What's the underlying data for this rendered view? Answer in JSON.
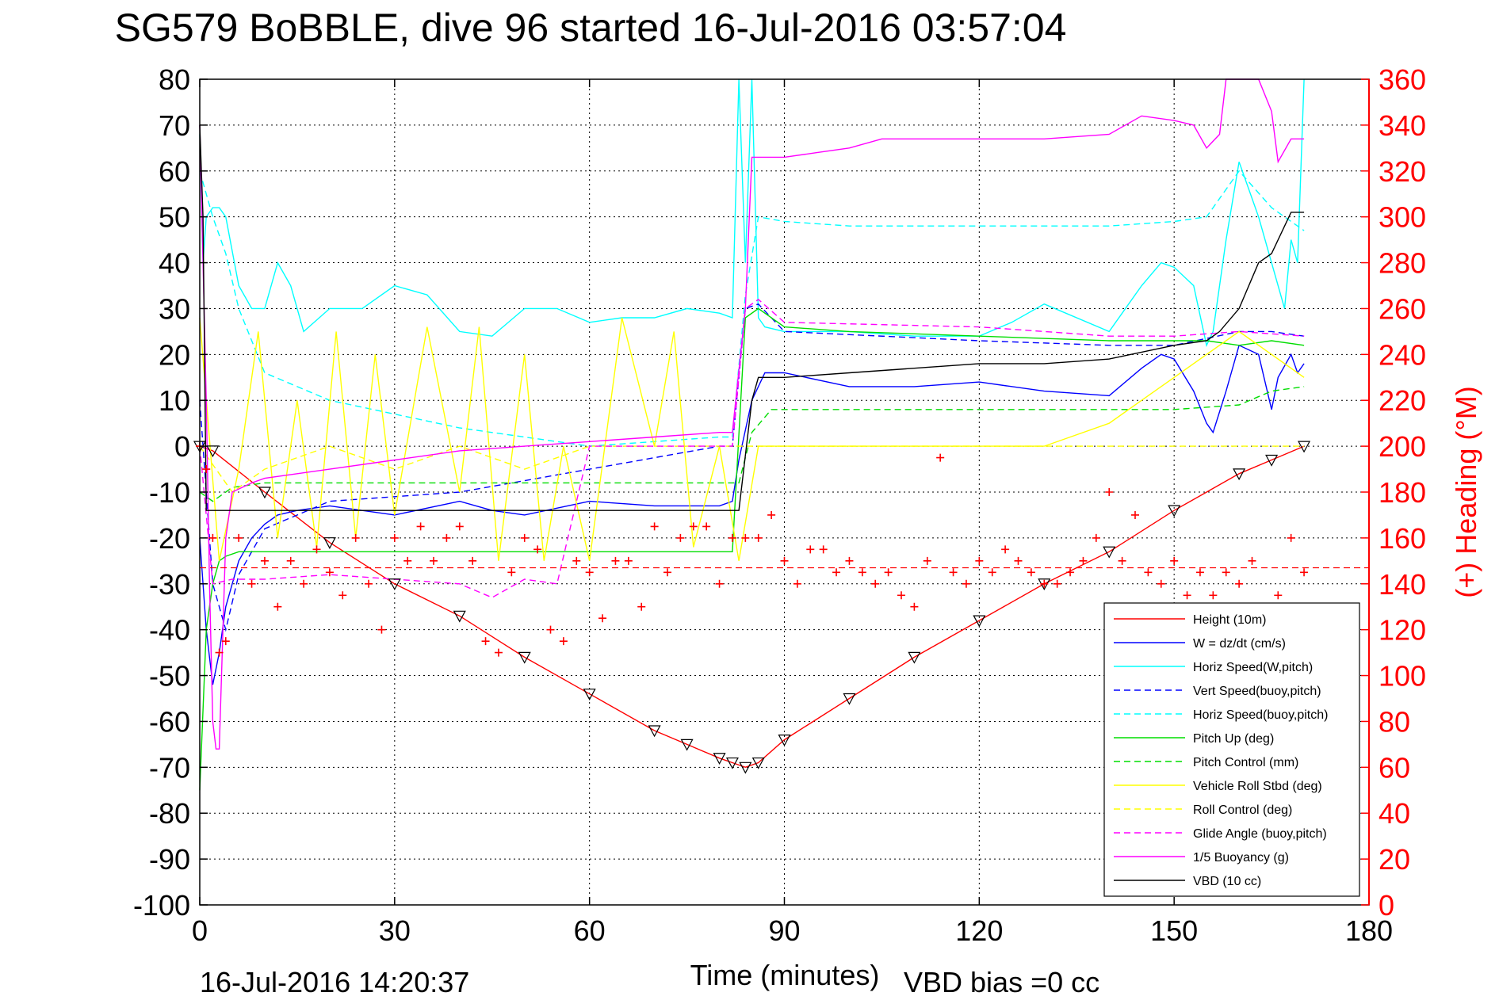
{
  "chart_data": {
    "type": "line",
    "title": "SG579 BoBBLE, dive 96 started 16-Jul-2016 03:57:04",
    "xlabel": "Time (minutes)",
    "ylabel_right": "(+) Heading (°M)",
    "footer_left": "16-Jul-2016 14:20:37",
    "footer_right": "VBD bias =0 cc",
    "xlim": [
      0,
      180
    ],
    "ylim": [
      -100,
      80
    ],
    "y2lim": [
      0,
      360
    ],
    "xticks": [
      0,
      30,
      60,
      90,
      120,
      150,
      180
    ],
    "yticks": [
      -100,
      -90,
      -80,
      -70,
      -60,
      -50,
      -40,
      -30,
      -20,
      -10,
      0,
      10,
      20,
      30,
      40,
      50,
      60,
      70,
      80
    ],
    "y2ticks": [
      0,
      20,
      40,
      60,
      80,
      100,
      120,
      140,
      160,
      180,
      200,
      220,
      240,
      260,
      280,
      300,
      320,
      340,
      360
    ],
    "grid": true,
    "legend_position": "bottom-right",
    "colors": {
      "red": "#ff0000",
      "blue": "#0000ff",
      "cyan": "#00ffff",
      "green": "#00dd00",
      "yellow": "#ffff00",
      "magenta": "#ff00ff",
      "black": "#000000"
    },
    "series": [
      {
        "name": "Height (10m)",
        "color": "#ff0000",
        "style": "solid",
        "x": [
          0,
          2,
          10,
          20,
          30,
          40,
          50,
          60,
          70,
          75,
          80,
          82,
          84,
          86,
          90,
          100,
          110,
          120,
          130,
          140,
          150,
          160,
          165,
          170
        ],
        "y": [
          0,
          -1,
          -10,
          -21,
          -30,
          -37,
          -46,
          -54,
          -62,
          -65,
          -68,
          -69,
          -70,
          -69,
          -64,
          -55,
          -46,
          -38,
          -30,
          -23,
          -14,
          -6,
          -3,
          0
        ]
      },
      {
        "name": "W = dz/dt (cm/s)",
        "color": "#0000ff",
        "style": "solid",
        "x": [
          0,
          1,
          2,
          3,
          4,
          6,
          8,
          10,
          12,
          15,
          20,
          30,
          40,
          45,
          50,
          60,
          70,
          80,
          82,
          83,
          85,
          87,
          90,
          100,
          110,
          120,
          130,
          140,
          145,
          148,
          150,
          153,
          155,
          156,
          158,
          160,
          163,
          165,
          166,
          168,
          169,
          170
        ],
        "y": [
          -20,
          -40,
          -52,
          -45,
          -35,
          -25,
          -20,
          -17,
          -15,
          -14,
          -13,
          -15,
          -12,
          -14,
          -15,
          -12,
          -13,
          -13,
          -12,
          -3,
          10,
          16,
          16,
          13,
          13,
          14,
          12,
          11,
          17,
          20,
          19,
          12,
          5,
          3,
          12,
          22,
          20,
          8,
          15,
          20,
          16,
          18
        ]
      },
      {
        "name": "Horiz Speed(W,pitch)",
        "color": "#00ffff",
        "style": "solid",
        "x": [
          0,
          0.5,
          1,
          2,
          3,
          4,
          6,
          8,
          10,
          12,
          14,
          16,
          20,
          25,
          30,
          35,
          40,
          45,
          50,
          55,
          60,
          65,
          70,
          75,
          80,
          82,
          83,
          84,
          85,
          86,
          87,
          90,
          100,
          110,
          120,
          125,
          130,
          140,
          145,
          148,
          150,
          153,
          155,
          156,
          158,
          160,
          163,
          165,
          167,
          168,
          169,
          170
        ],
        "y": [
          68,
          40,
          50,
          52,
          52,
          50,
          35,
          30,
          30,
          40,
          35,
          25,
          30,
          30,
          35,
          33,
          25,
          24,
          30,
          30,
          27,
          28,
          28,
          30,
          29,
          28,
          80,
          40,
          80,
          28,
          26,
          25,
          25,
          24,
          24,
          27,
          31,
          25,
          35,
          40,
          39,
          35,
          22,
          25,
          45,
          62,
          50,
          40,
          30,
          45,
          40,
          80
        ]
      },
      {
        "name": "Vert Speed(buoy,pitch)",
        "color": "#0000ff",
        "style": "dashed",
        "x": [
          0,
          2,
          4,
          6,
          10,
          20,
          40,
          60,
          80,
          82,
          84,
          86,
          90,
          120,
          140,
          150,
          160,
          165,
          170
        ],
        "y": [
          10,
          -30,
          -40,
          -28,
          -18,
          -12,
          -10,
          -5,
          0,
          0,
          30,
          31,
          25,
          23,
          22,
          22,
          25,
          25,
          24
        ]
      },
      {
        "name": "Horiz Speed(buoy,pitch)",
        "color": "#00ffff",
        "style": "dashed",
        "x": [
          0,
          2,
          4,
          6,
          10,
          20,
          30,
          40,
          50,
          60,
          70,
          80,
          82,
          84,
          86,
          90,
          100,
          120,
          140,
          150,
          155,
          160,
          165,
          170
        ],
        "y": [
          60,
          50,
          42,
          30,
          16,
          10,
          7,
          4,
          2,
          0,
          1,
          2,
          2,
          33,
          50,
          49,
          48,
          48,
          48,
          49,
          50,
          60,
          52,
          47
        ]
      },
      {
        "name": "Pitch Up (deg)",
        "color": "#00dd00",
        "style": "solid",
        "x": [
          0,
          1,
          2,
          3,
          4,
          6,
          10,
          20,
          30,
          40,
          50,
          60,
          70,
          80,
          82,
          84,
          86,
          90,
          100,
          120,
          140,
          150,
          155,
          160,
          165,
          170
        ],
        "y": [
          -75,
          -40,
          -30,
          -25,
          -24,
          -23,
          -23,
          -23,
          -23,
          -23,
          -23,
          -23,
          -23,
          -23,
          -23,
          28,
          30,
          26,
          25,
          24,
          23,
          23,
          23,
          22,
          23,
          22
        ]
      },
      {
        "name": "Pitch Control (mm)",
        "color": "#00dd00",
        "style": "dashed",
        "x": [
          0,
          2,
          5,
          10,
          30,
          50,
          80,
          83,
          85,
          88,
          92,
          100,
          140,
          150,
          160,
          165,
          170
        ],
        "y": [
          -10,
          -12,
          -9,
          -8,
          -8,
          -8,
          -8,
          -8,
          3,
          8,
          8,
          8,
          8,
          8,
          9,
          12,
          13
        ]
      },
      {
        "name": "Vehicle Roll Stbd (deg)",
        "color": "#ffff00",
        "style": "solid",
        "x": [
          0,
          3,
          6,
          9,
          12,
          15,
          18,
          21,
          24,
          27,
          30,
          35,
          40,
          43,
          46,
          50,
          53,
          56,
          60,
          65,
          70,
          73,
          76,
          80,
          83,
          86,
          90,
          100,
          110,
          120,
          130,
          140,
          145,
          150,
          155,
          160,
          165,
          170
        ],
        "y": [
          28,
          -25,
          -5,
          25,
          -20,
          10,
          -22,
          25,
          -20,
          20,
          -15,
          26,
          -10,
          26,
          -25,
          20,
          -25,
          0,
          -25,
          28,
          0,
          25,
          -22,
          0,
          -25,
          0,
          0,
          0,
          0,
          0,
          0,
          5,
          10,
          15,
          20,
          25,
          20,
          15
        ]
      },
      {
        "name": "Roll Control (deg)",
        "color": "#ffff00",
        "style": "dashed",
        "x": [
          0,
          5,
          10,
          20,
          30,
          40,
          50,
          60,
          70,
          80,
          85,
          90,
          100,
          120,
          140,
          150,
          160,
          170
        ],
        "y": [
          0,
          -10,
          -5,
          0,
          -5,
          0,
          -5,
          0,
          0,
          0,
          0,
          0,
          0,
          0,
          0,
          0,
          0,
          0
        ]
      },
      {
        "name": "Glide Angle (buoy,pitch)",
        "color": "#ff00ff",
        "style": "dashed",
        "x": [
          0,
          2,
          5,
          10,
          20,
          30,
          40,
          45,
          50,
          55,
          60,
          80,
          82,
          84,
          86,
          90,
          120,
          140,
          150,
          160,
          170
        ],
        "y": [
          0,
          -30,
          -29,
          -29,
          -28,
          -29,
          -30,
          -33,
          -29,
          -30,
          0,
          0,
          0,
          30,
          32,
          27,
          26,
          24,
          24,
          25,
          24
        ]
      },
      {
        "name": "1/5 Buoyancy (g)",
        "color": "#ff00ff",
        "style": "solid",
        "x": [
          0,
          0.5,
          1,
          1.5,
          2,
          2.5,
          3,
          4,
          5,
          8,
          10,
          15,
          20,
          30,
          40,
          50,
          60,
          70,
          80,
          82,
          84,
          85,
          86,
          90,
          95,
          100,
          105,
          110,
          120,
          130,
          140,
          145,
          150,
          153,
          155,
          157,
          158,
          160,
          163,
          165,
          166,
          168,
          170
        ],
        "y": [
          70,
          40,
          10,
          -30,
          -60,
          -66,
          -66,
          -20,
          -10,
          -8,
          -7,
          -6,
          -5,
          -3,
          -1,
          0,
          1,
          2,
          3,
          3,
          30,
          63,
          63,
          63,
          64,
          65,
          67,
          67,
          67,
          67,
          68,
          72,
          71,
          70,
          65,
          68,
          80,
          80,
          80,
          73,
          62,
          67,
          67
        ]
      },
      {
        "name": "VBD (10 cc)",
        "color": "#000000",
        "style": "solid",
        "x": [
          0,
          0.5,
          1,
          2,
          5,
          10,
          30,
          50,
          70,
          80,
          82,
          83,
          85,
          86,
          90,
          100,
          110,
          120,
          130,
          140,
          150,
          155,
          157,
          160,
          163,
          165,
          168,
          170
        ],
        "y": [
          70,
          50,
          -14,
          -14,
          -14,
          -14,
          -14,
          -14,
          -14,
          -14,
          -14,
          -14,
          10,
          15,
          15,
          16,
          17,
          18,
          18,
          19,
          22,
          23,
          25,
          30,
          40,
          42,
          51,
          51
        ]
      }
    ],
    "heading": {
      "name": "(+) Heading (°M)",
      "color": "#ff0000",
      "marker": "+",
      "mean": 147,
      "x": [
        0,
        1,
        2,
        3,
        4,
        6,
        8,
        10,
        12,
        14,
        16,
        18,
        20,
        22,
        24,
        26,
        28,
        30,
        32,
        34,
        36,
        38,
        40,
        42,
        44,
        46,
        48,
        50,
        52,
        54,
        56,
        58,
        60,
        62,
        64,
        66,
        68,
        70,
        72,
        74,
        76,
        78,
        80,
        82,
        84,
        86,
        88,
        90,
        92,
        94,
        96,
        98,
        100,
        102,
        104,
        106,
        108,
        110,
        112,
        114,
        116,
        118,
        120,
        122,
        124,
        126,
        128,
        130,
        132,
        134,
        136,
        138,
        140,
        142,
        144,
        146,
        148,
        150,
        152,
        154,
        156,
        158,
        160,
        162,
        164,
        166,
        168,
        170
      ],
      "y": [
        200,
        190,
        160,
        110,
        115,
        160,
        140,
        150,
        130,
        150,
        140,
        155,
        145,
        135,
        160,
        140,
        120,
        160,
        150,
        165,
        150,
        160,
        165,
        150,
        115,
        110,
        145,
        160,
        155,
        120,
        115,
        150,
        145,
        125,
        150,
        150,
        130,
        165,
        145,
        160,
        165,
        165,
        140,
        160,
        160,
        160,
        170,
        150,
        140,
        155,
        155,
        145,
        150,
        145,
        140,
        145,
        135,
        130,
        150,
        195,
        145,
        140,
        150,
        145,
        155,
        150,
        145,
        140,
        140,
        145,
        150,
        160,
        180,
        150,
        170,
        145,
        140,
        150,
        135,
        145,
        135,
        145,
        140,
        150,
        130,
        135,
        160,
        145
      ]
    }
  }
}
